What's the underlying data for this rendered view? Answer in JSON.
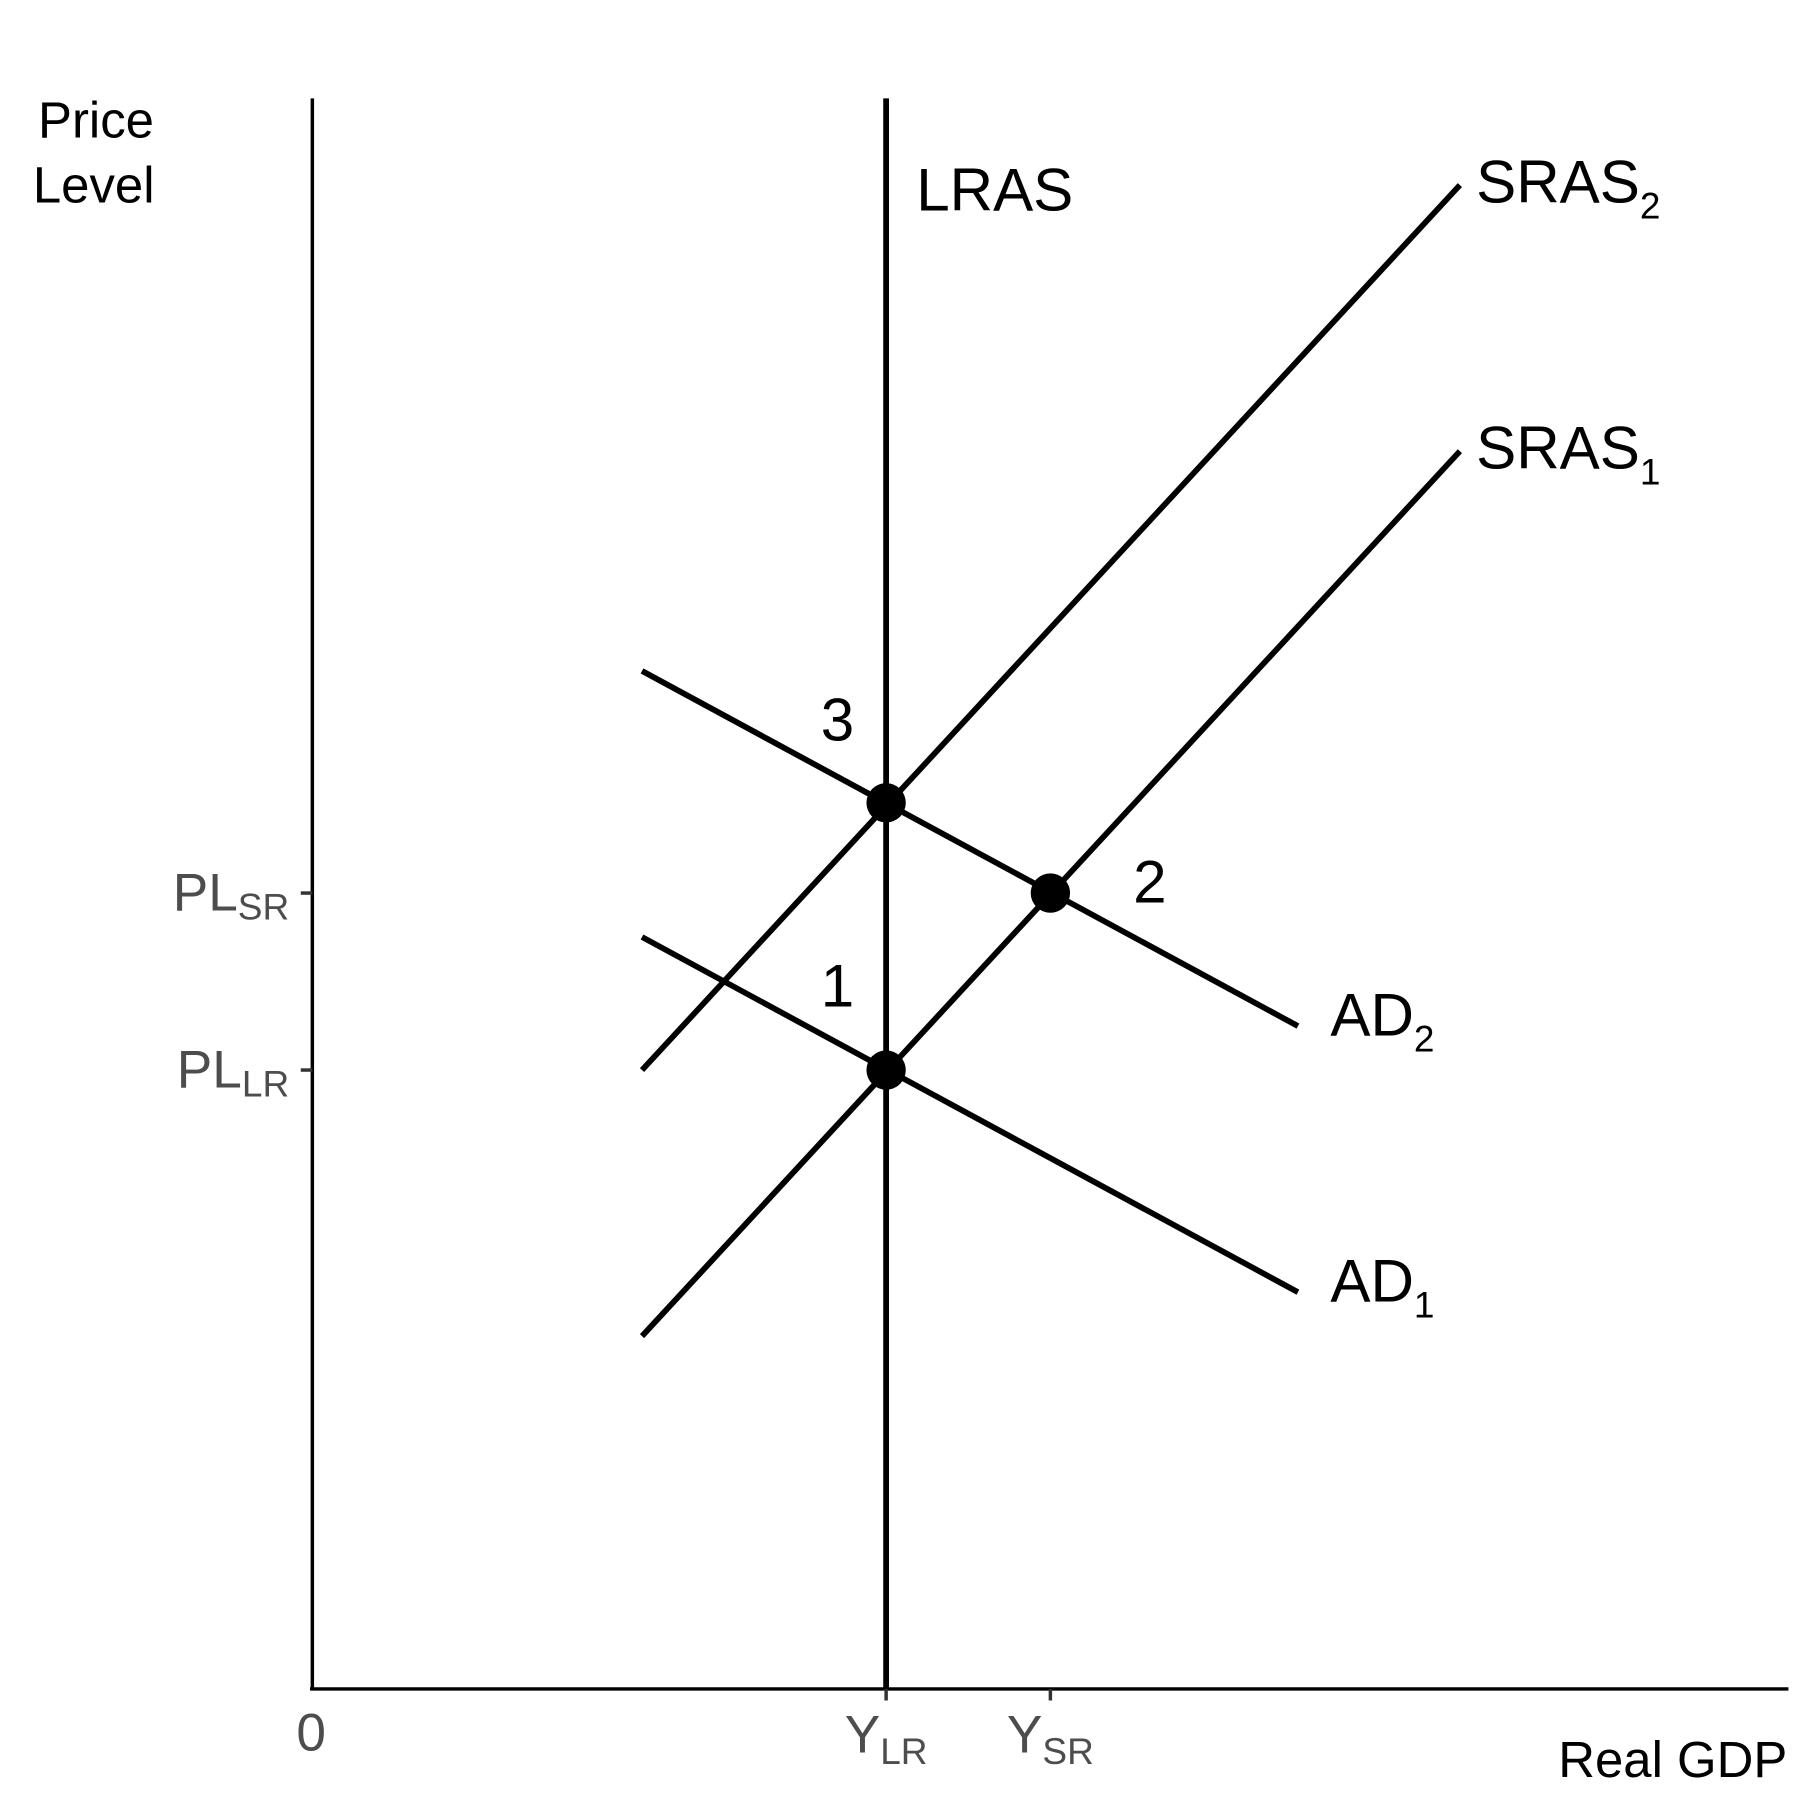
{
  "axes": {
    "y_label": [
      "Price",
      "Level"
    ],
    "x_label": "Real GDP",
    "origin": "0"
  },
  "curves": {
    "lras": {
      "label": "LRAS"
    },
    "sras2": {
      "label": "SRAS",
      "sub": "2"
    },
    "sras1": {
      "label": "SRAS",
      "sub": "1"
    },
    "ad2": {
      "label": "AD",
      "sub": "2"
    },
    "ad1": {
      "label": "AD",
      "sub": "1"
    }
  },
  "points": [
    {
      "label": "1"
    },
    {
      "label": "2"
    },
    {
      "label": "3"
    }
  ],
  "y_ticks": [
    {
      "label": "PL",
      "sub": "SR"
    },
    {
      "label": "PL",
      "sub": "LR"
    }
  ],
  "x_ticks": [
    {
      "label": "Y",
      "sub": "LR"
    },
    {
      "label": "Y",
      "sub": "SR"
    }
  ]
}
